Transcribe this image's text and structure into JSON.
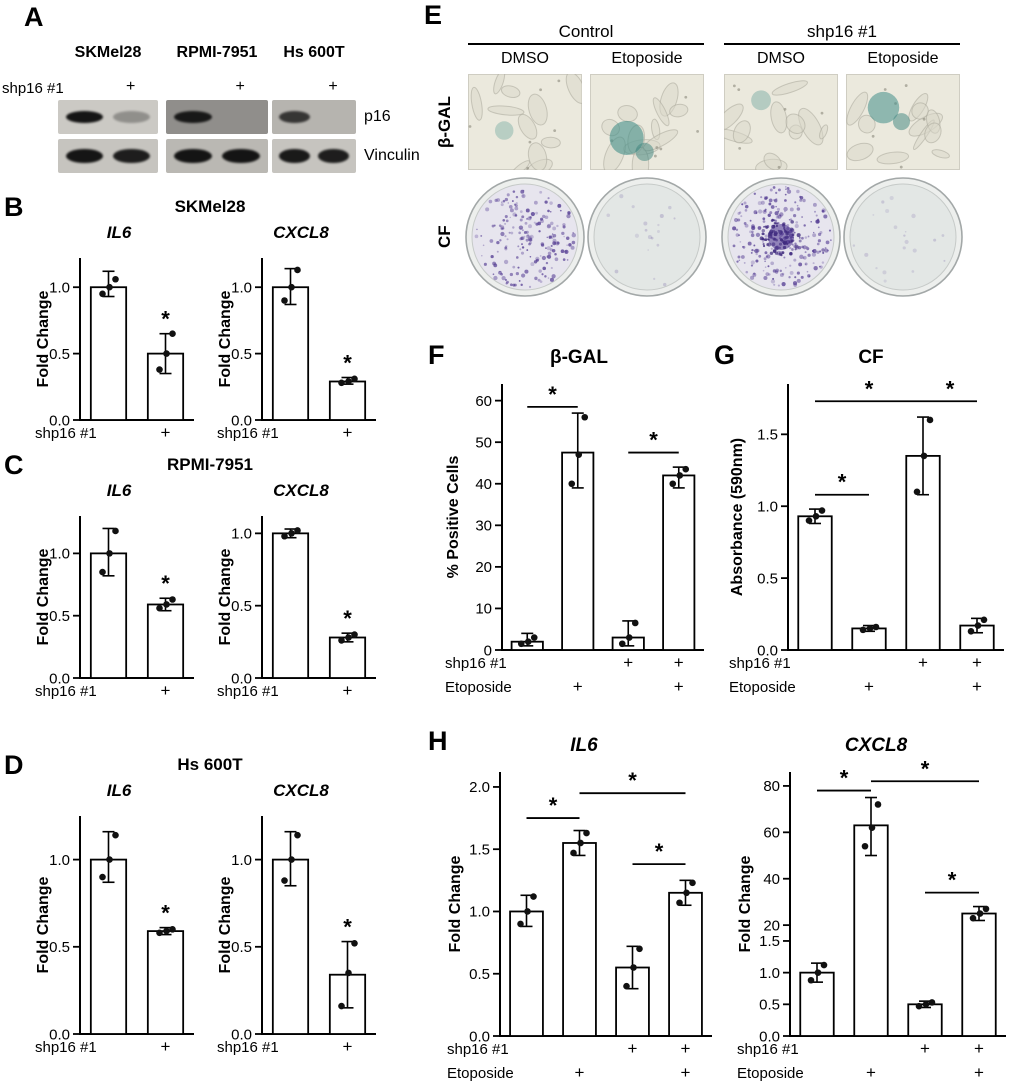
{
  "colors": {
    "stain_purple": "#533b92",
    "bgal_teal": "#45908a",
    "band_dark": "#0c0c0c"
  },
  "panelA": {
    "label": "A",
    "row_label": "shp16 #1",
    "plus": "+",
    "right_labels": {
      "p16": "p16",
      "vinculin": "Vinculin"
    },
    "blots": [
      {
        "name": "SKMel28",
        "p16_film": "#cbc9c4",
        "vinc_film": "#c6c4bf",
        "p16_bands": [
          0.95,
          0.3
        ],
        "vinc_bands": [
          0.95,
          0.9
        ]
      },
      {
        "name": "RPMI-7951",
        "p16_film": "#908e8b",
        "vinc_film": "#bab8b3",
        "p16_bands": [
          0.9,
          0
        ],
        "vinc_bands": [
          0.95,
          0.95
        ]
      },
      {
        "name": "Hs 600T",
        "p16_film": "#b6b4af",
        "vinc_film": "#c6c4bf",
        "p16_bands": [
          0.75,
          0
        ],
        "vinc_bands": [
          0.92,
          0.9
        ]
      }
    ]
  },
  "panelB": {
    "label": "B",
    "title": "SKMel28"
  },
  "panelC": {
    "label": "C",
    "title": "RPMI-7951"
  },
  "panelD": {
    "label": "D",
    "title": "Hs 600T"
  },
  "panelE": {
    "label": "E",
    "group_headers": [
      "Control",
      "shp16 #1"
    ],
    "col_headers": [
      "DMSO",
      "Etoposide",
      "DMSO",
      "Etoposide"
    ],
    "row_labels": [
      "β-GAL",
      "CF"
    ],
    "bgal_tiles": [
      {
        "stain": 0.25
      },
      {
        "stain": 0.85
      },
      {
        "stain": 0.3
      },
      {
        "stain": 0.75
      }
    ],
    "cf_dishes": [
      {
        "density": 0.8,
        "center": false
      },
      {
        "density": 0.04,
        "center": false
      },
      {
        "density": 1.0,
        "center": true
      },
      {
        "density": 0.05,
        "center": false
      }
    ]
  },
  "panelF": {
    "label": "F"
  },
  "panelG": {
    "label": "G"
  },
  "panelH": {
    "label": "H"
  },
  "chart_data": [
    {
      "id": "B-IL6",
      "panel": "B",
      "type": "bar",
      "title": "IL6",
      "title_italic": true,
      "ylabel": "Fold Change",
      "ml": 46,
      "scale": {
        "segments": [
          {
            "v0": 0,
            "v1": 1.22,
            "f0": 0,
            "f1": 1
          }
        ]
      },
      "yticks": [
        {
          "v": 0,
          "label": "0.0"
        },
        {
          "v": 0.5,
          "label": "0.5"
        },
        {
          "v": 1.0,
          "label": "1.0"
        }
      ],
      "bars": [
        {
          "value": 1.0,
          "err": [
            0.93,
            1.12
          ],
          "points": [
            0.95,
            1.0,
            1.06
          ]
        },
        {
          "value": 0.5,
          "err": [
            0.35,
            0.65
          ],
          "points": [
            0.38,
            0.5,
            0.65
          ],
          "star": true
        }
      ],
      "sig": [],
      "xrows": [
        {
          "label": "shp16 #1",
          "cells": [
            "",
            "+"
          ]
        }
      ]
    },
    {
      "id": "B-CXCL8",
      "panel": "B",
      "type": "bar",
      "title": "CXCL8",
      "title_italic": true,
      "ylabel": "Fold Change",
      "ml": 46,
      "scale": {
        "segments": [
          {
            "v0": 0,
            "v1": 1.22,
            "f0": 0,
            "f1": 1
          }
        ]
      },
      "yticks": [
        {
          "v": 0,
          "label": "0.0"
        },
        {
          "v": 0.5,
          "label": "0.5"
        },
        {
          "v": 1.0,
          "label": "1.0"
        }
      ],
      "bars": [
        {
          "value": 1.0,
          "err": [
            0.87,
            1.14
          ],
          "points": [
            0.9,
            1.0,
            1.13
          ]
        },
        {
          "value": 0.29,
          "err": [
            0.27,
            0.32
          ],
          "points": [
            0.28,
            0.29,
            0.31
          ],
          "star": true
        }
      ],
      "sig": [],
      "xrows": [
        {
          "label": "shp16 #1",
          "cells": [
            "",
            "+"
          ]
        }
      ]
    },
    {
      "id": "C-IL6",
      "panel": "C",
      "type": "bar",
      "title": "IL6",
      "title_italic": true,
      "ylabel": "Fold Change",
      "ml": 46,
      "scale": {
        "segments": [
          {
            "v0": 0,
            "v1": 1.3,
            "f0": 0,
            "f1": 1
          }
        ]
      },
      "yticks": [
        {
          "v": 0,
          "label": "0.0"
        },
        {
          "v": 0.5,
          "label": "0.5"
        },
        {
          "v": 1.0,
          "label": "1.0"
        }
      ],
      "bars": [
        {
          "value": 1.0,
          "err": [
            0.82,
            1.2
          ],
          "points": [
            0.85,
            1.0,
            1.18
          ]
        },
        {
          "value": 0.59,
          "err": [
            0.54,
            0.64
          ],
          "points": [
            0.56,
            0.59,
            0.63
          ],
          "star": true
        }
      ],
      "sig": [],
      "xrows": [
        {
          "label": "shp16 #1",
          "cells": [
            "",
            "+"
          ]
        }
      ]
    },
    {
      "id": "C-CXCL8",
      "panel": "C",
      "type": "bar",
      "title": "CXCL8",
      "title_italic": true,
      "ylabel": "Fold Change",
      "ml": 46,
      "scale": {
        "segments": [
          {
            "v0": 0,
            "v1": 1.12,
            "f0": 0,
            "f1": 1
          }
        ]
      },
      "yticks": [
        {
          "v": 0,
          "label": "0.0"
        },
        {
          "v": 0.5,
          "label": "0.5"
        },
        {
          "v": 1.0,
          "label": "1.0"
        }
      ],
      "bars": [
        {
          "value": 1.0,
          "err": [
            0.97,
            1.03
          ],
          "points": [
            0.98,
            1.0,
            1.02
          ]
        },
        {
          "value": 0.28,
          "err": [
            0.25,
            0.31
          ],
          "points": [
            0.26,
            0.28,
            0.3
          ],
          "star": true
        }
      ],
      "sig": [],
      "xrows": [
        {
          "label": "shp16 #1",
          "cells": [
            "",
            "+"
          ]
        }
      ]
    },
    {
      "id": "D-IL6",
      "panel": "D",
      "type": "bar",
      "title": "IL6",
      "title_italic": true,
      "ylabel": "Fold Change",
      "ml": 46,
      "scale": {
        "segments": [
          {
            "v0": 0,
            "v1": 1.25,
            "f0": 0,
            "f1": 1
          }
        ]
      },
      "yticks": [
        {
          "v": 0,
          "label": "0.0"
        },
        {
          "v": 0.5,
          "label": "0.5"
        },
        {
          "v": 1.0,
          "label": "1.0"
        }
      ],
      "bars": [
        {
          "value": 1.0,
          "err": [
            0.87,
            1.16
          ],
          "points": [
            0.9,
            1.0,
            1.14
          ]
        },
        {
          "value": 0.59,
          "err": [
            0.57,
            0.61
          ],
          "points": [
            0.58,
            0.59,
            0.6
          ],
          "star": true
        }
      ],
      "sig": [],
      "xrows": [
        {
          "label": "shp16 #1",
          "cells": [
            "",
            "+"
          ]
        }
      ]
    },
    {
      "id": "D-CXCL8",
      "panel": "D",
      "type": "bar",
      "title": "CXCL8",
      "title_italic": true,
      "ylabel": "Fold Change",
      "ml": 46,
      "scale": {
        "segments": [
          {
            "v0": 0,
            "v1": 1.25,
            "f0": 0,
            "f1": 1
          }
        ]
      },
      "yticks": [
        {
          "v": 0,
          "label": "0.0"
        },
        {
          "v": 0.5,
          "label": "0.5"
        },
        {
          "v": 1.0,
          "label": "1.0"
        }
      ],
      "bars": [
        {
          "value": 1.0,
          "err": [
            0.85,
            1.16
          ],
          "points": [
            0.88,
            1.0,
            1.14
          ]
        },
        {
          "value": 0.34,
          "err": [
            0.15,
            0.53
          ],
          "points": [
            0.16,
            0.35,
            0.52
          ],
          "star": true
        }
      ],
      "sig": [],
      "xrows": [
        {
          "label": "shp16 #1",
          "cells": [
            "",
            "+"
          ]
        }
      ]
    },
    {
      "id": "F-BGAL",
      "panel": "F",
      "type": "bar",
      "title": "β-GAL",
      "title_italic": false,
      "ylabel": "% Positive Cells",
      "ml": 58,
      "scale": {
        "segments": [
          {
            "v0": 0,
            "v1": 64,
            "f0": 0,
            "f1": 1
          }
        ]
      },
      "yticks": [
        {
          "v": 0,
          "label": "0"
        },
        {
          "v": 10,
          "label": "10"
        },
        {
          "v": 20,
          "label": "20"
        },
        {
          "v": 30,
          "label": "30"
        },
        {
          "v": 40,
          "label": "40"
        },
        {
          "v": 50,
          "label": "50"
        },
        {
          "v": 60,
          "label": "60"
        }
      ],
      "bars": [
        {
          "value": 2,
          "err": [
            1,
            4
          ],
          "points": [
            1.5,
            2,
            3
          ]
        },
        {
          "value": 47.5,
          "err": [
            39,
            57
          ],
          "points": [
            40,
            47,
            56
          ]
        },
        {
          "value": 3,
          "err": [
            1,
            7
          ],
          "points": [
            1.5,
            3,
            6.5
          ]
        },
        {
          "value": 42,
          "err": [
            39,
            44
          ],
          "points": [
            40,
            42,
            43.5
          ]
        }
      ],
      "sig": [
        {
          "from": 0,
          "to": 1,
          "v": 58.5
        },
        {
          "from": 2,
          "to": 3,
          "v": 47.5
        }
      ],
      "xrows": [
        {
          "label": "shp16 #1",
          "cells": [
            "",
            "",
            "+",
            "+"
          ]
        },
        {
          "label": "Etoposide",
          "cells": [
            "",
            "+",
            "",
            "+"
          ]
        }
      ]
    },
    {
      "id": "G-CF",
      "panel": "G",
      "type": "bar",
      "title": "CF",
      "title_italic": false,
      "ylabel": "Absorbance (590nm)",
      "ml": 60,
      "scale": {
        "segments": [
          {
            "v0": 0,
            "v1": 1.85,
            "f0": 0,
            "f1": 1
          }
        ]
      },
      "yticks": [
        {
          "v": 0,
          "label": "0.0"
        },
        {
          "v": 0.5,
          "label": "0.5"
        },
        {
          "v": 1.0,
          "label": "1.0"
        },
        {
          "v": 1.5,
          "label": "1.5"
        }
      ],
      "bars": [
        {
          "value": 0.93,
          "err": [
            0.88,
            0.98
          ],
          "points": [
            0.9,
            0.93,
            0.97
          ]
        },
        {
          "value": 0.15,
          "err": [
            0.13,
            0.17
          ],
          "points": [
            0.14,
            0.15,
            0.16
          ]
        },
        {
          "value": 1.35,
          "err": [
            1.08,
            1.62
          ],
          "points": [
            1.1,
            1.35,
            1.6
          ]
        },
        {
          "value": 0.17,
          "err": [
            0.12,
            0.22
          ],
          "points": [
            0.13,
            0.17,
            0.21
          ]
        }
      ],
      "sig": [
        {
          "from": 0,
          "to": 1,
          "v": 1.08
        },
        {
          "from": 0,
          "to": 2,
          "v": 1.73
        },
        {
          "from": 2,
          "to": 3,
          "v": 1.73
        }
      ],
      "xrows": [
        {
          "label": "shp16 #1",
          "cells": [
            "",
            "",
            "+",
            "+"
          ]
        },
        {
          "label": "Etoposide",
          "cells": [
            "",
            "+",
            "",
            "+"
          ]
        }
      ]
    },
    {
      "id": "H-IL6",
      "panel": "H",
      "type": "bar",
      "title": "IL6",
      "title_italic": true,
      "ylabel": "Fold Change",
      "ml": 54,
      "scale": {
        "segments": [
          {
            "v0": 0,
            "v1": 2.12,
            "f0": 0,
            "f1": 1
          }
        ]
      },
      "yticks": [
        {
          "v": 0,
          "label": "0.0"
        },
        {
          "v": 0.5,
          "label": "0.5"
        },
        {
          "v": 1.0,
          "label": "1.0"
        },
        {
          "v": 1.5,
          "label": "1.5"
        },
        {
          "v": 2.0,
          "label": "2.0"
        }
      ],
      "bars": [
        {
          "value": 1.0,
          "err": [
            0.88,
            1.13
          ],
          "points": [
            0.9,
            1.0,
            1.12
          ]
        },
        {
          "value": 1.55,
          "err": [
            1.45,
            1.65
          ],
          "points": [
            1.47,
            1.55,
            1.63
          ]
        },
        {
          "value": 0.55,
          "err": [
            0.38,
            0.72
          ],
          "points": [
            0.4,
            0.55,
            0.7
          ]
        },
        {
          "value": 1.15,
          "err": [
            1.05,
            1.25
          ],
          "points": [
            1.07,
            1.15,
            1.23
          ]
        }
      ],
      "sig": [
        {
          "from": 0,
          "to": 1,
          "v": 1.75
        },
        {
          "from": 1,
          "to": 3,
          "v": 1.95
        },
        {
          "from": 2,
          "to": 3,
          "v": 1.38
        }
      ],
      "xrows": [
        {
          "label": "shp16 #1",
          "cells": [
            "",
            "",
            "+",
            "+"
          ]
        },
        {
          "label": "Etoposide",
          "cells": [
            "",
            "+",
            "",
            "+"
          ]
        }
      ]
    },
    {
      "id": "H-CXCL8",
      "panel": "H",
      "type": "bar",
      "title": "CXCL8",
      "title_italic": true,
      "ylabel": "Fold Change",
      "ml": 54,
      "scale": {
        "segments": [
          {
            "v0": 0,
            "v1": 1.75,
            "f0": 0,
            "f1": 0.42
          },
          {
            "v0": 20,
            "v1": 86,
            "f0": 0.42,
            "f1": 1
          }
        ]
      },
      "yticks": [
        {
          "v": 0,
          "label": "0.0"
        },
        {
          "v": 0.5,
          "label": "0.5"
        },
        {
          "v": 1.0,
          "label": "1.0"
        },
        {
          "v": 1.5,
          "label": "1.5"
        },
        {
          "v": 20,
          "label": "20"
        },
        {
          "v": 40,
          "label": "40"
        },
        {
          "v": 60,
          "label": "60"
        },
        {
          "v": 80,
          "label": "80"
        }
      ],
      "bars": [
        {
          "value": 1.0,
          "err": [
            0.85,
            1.15
          ],
          "points": [
            0.88,
            1.0,
            1.12
          ]
        },
        {
          "value": 63,
          "err": [
            50,
            75
          ],
          "points": [
            54,
            62,
            72
          ]
        },
        {
          "value": 0.5,
          "err": [
            0.45,
            0.55
          ],
          "points": [
            0.47,
            0.5,
            0.53
          ]
        },
        {
          "value": 25,
          "err": [
            22,
            28
          ],
          "points": [
            23,
            25,
            27
          ]
        }
      ],
      "sig": [
        {
          "from": 0,
          "to": 1,
          "v": 78
        },
        {
          "from": 1,
          "to": 3,
          "v": 82
        },
        {
          "from": 2,
          "to": 3,
          "v": 34
        }
      ],
      "xrows": [
        {
          "label": "shp16 #1",
          "cells": [
            "",
            "",
            "+",
            "+"
          ]
        },
        {
          "label": "Etoposide",
          "cells": [
            "",
            "+",
            "",
            "+"
          ]
        }
      ]
    }
  ]
}
